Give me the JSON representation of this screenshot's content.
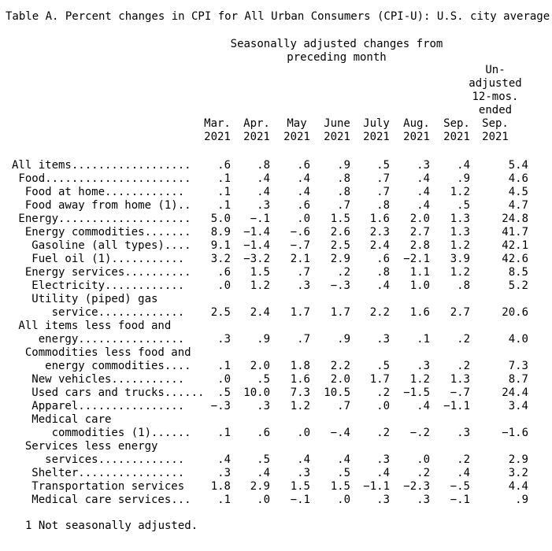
{
  "title": "Table A. Percent changes in CPI for All Urban Consumers (CPI-U): U.S. city average",
  "group_header": [
    "Seasonally adjusted changes from",
    "preceding month"
  ],
  "columns": [
    [
      "Mar.",
      "2021"
    ],
    [
      "Apr.",
      "2021"
    ],
    [
      "May",
      "2021"
    ],
    [
      "June",
      "2021"
    ],
    [
      "July",
      "2021"
    ],
    [
      "Aug.",
      "2021"
    ],
    [
      "Sep.",
      "2021"
    ],
    [
      "Un-",
      "adjusted",
      "12-mos.",
      "ended",
      "Sep.",
      "2021"
    ]
  ],
  "rows": [
    {
      "label": [
        "All items.................."
      ],
      "values": [
        ".6",
        ".8",
        ".6",
        ".9",
        ".5",
        ".3",
        ".4",
        "5.4"
      ]
    },
    {
      "label": [
        " Food......................"
      ],
      "values": [
        ".1",
        ".4",
        ".4",
        ".8",
        ".7",
        ".4",
        ".9",
        "4.6"
      ]
    },
    {
      "label": [
        "  Food at home............"
      ],
      "values": [
        ".1",
        ".4",
        ".4",
        ".8",
        ".7",
        ".4",
        "1.2",
        "4.5"
      ]
    },
    {
      "label": [
        "  Food away from home (1).."
      ],
      "values": [
        ".1",
        ".3",
        ".6",
        ".7",
        ".8",
        ".4",
        ".5",
        "4.7"
      ]
    },
    {
      "label": [
        " Energy...................."
      ],
      "values": [
        "5.0",
        "−.1",
        ".0",
        "1.5",
        "1.6",
        "2.0",
        "1.3",
        "24.8"
      ]
    },
    {
      "label": [
        "  Energy commodities......."
      ],
      "values": [
        "8.9",
        "−1.4",
        "−.6",
        "2.6",
        "2.3",
        "2.7",
        "1.3",
        "41.7"
      ]
    },
    {
      "label": [
        "   Gasoline (all types)...."
      ],
      "values": [
        "9.1",
        "−1.4",
        "−.7",
        "2.5",
        "2.4",
        "2.8",
        "1.2",
        "42.1"
      ]
    },
    {
      "label": [
        "   Fuel oil (1)..........."
      ],
      "values": [
        "3.2",
        "−3.2",
        "2.1",
        "2.9",
        ".6",
        "−2.1",
        "3.9",
        "42.6"
      ]
    },
    {
      "label": [
        "  Energy services.........."
      ],
      "values": [
        ".6",
        "1.5",
        ".7",
        ".2",
        ".8",
        "1.1",
        "1.2",
        "8.5"
      ]
    },
    {
      "label": [
        "   Electricity............"
      ],
      "values": [
        ".0",
        "1.2",
        ".3",
        "−.3",
        ".4",
        "1.0",
        ".8",
        "5.2"
      ]
    },
    {
      "label": [
        "   Utility (piped) gas",
        "      service............."
      ],
      "values": [
        "2.5",
        "2.4",
        "1.7",
        "1.7",
        "2.2",
        "1.6",
        "2.7",
        "20.6"
      ]
    },
    {
      "label": [
        " All items less food and",
        "    energy................"
      ],
      "values": [
        ".3",
        ".9",
        ".7",
        ".9",
        ".3",
        ".1",
        ".2",
        "4.0"
      ]
    },
    {
      "label": [
        "  Commodities less food and",
        "     energy commodities...."
      ],
      "values": [
        ".1",
        "2.0",
        "1.8",
        "2.2",
        ".5",
        ".3",
        ".2",
        "7.3"
      ]
    },
    {
      "label": [
        "   New vehicles..........."
      ],
      "values": [
        ".0",
        ".5",
        "1.6",
        "2.0",
        "1.7",
        "1.2",
        "1.3",
        "8.7"
      ]
    },
    {
      "label": [
        "   Used cars and trucks......"
      ],
      "values": [
        ".5",
        "10.0",
        "7.3",
        "10.5",
        ".2",
        "−1.5",
        "−.7",
        "24.4"
      ]
    },
    {
      "label": [
        "   Apparel................"
      ],
      "values": [
        "−.3",
        ".3",
        "1.2",
        ".7",
        ".0",
        ".4",
        "−1.1",
        "3.4"
      ]
    },
    {
      "label": [
        "   Medical care",
        "      commodities (1)......"
      ],
      "values": [
        ".1",
        ".6",
        ".0",
        "−.4",
        ".2",
        "−.2",
        ".3",
        "−1.6"
      ]
    },
    {
      "label": [
        "  Services less energy",
        "     services............."
      ],
      "values": [
        ".4",
        ".5",
        ".4",
        ".4",
        ".3",
        ".0",
        ".2",
        "2.9"
      ]
    },
    {
      "label": [
        "   Shelter................"
      ],
      "values": [
        ".3",
        ".4",
        ".3",
        ".5",
        ".4",
        ".2",
        ".4",
        "3.2"
      ]
    },
    {
      "label": [
        "   Transportation services"
      ],
      "values": [
        "1.8",
        "2.9",
        "1.5",
        "1.5",
        "−1.1",
        "−2.3",
        "−.5",
        "4.4"
      ]
    },
    {
      "label": [
        "   Medical care services..."
      ],
      "values": [
        ".1",
        ".0",
        "−.1",
        ".0",
        ".3",
        ".3",
        "−.1",
        ".9"
      ]
    }
  ],
  "footnote": "1 Not seasonally adjusted."
}
